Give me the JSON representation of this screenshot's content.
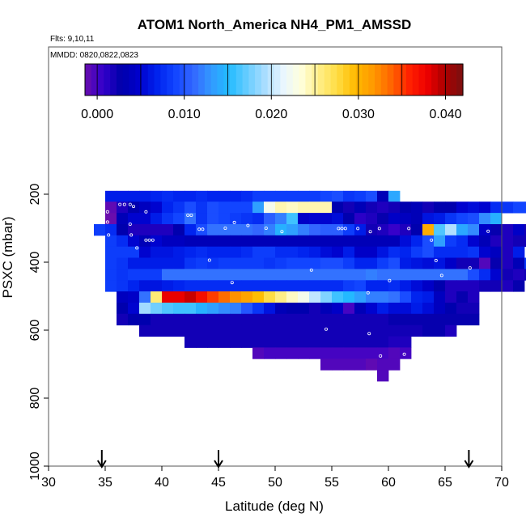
{
  "chart_data": {
    "type": "heatmap",
    "title": "ATOM1 North_America NH4_PM1_AMSSD",
    "subtitle_flights": "Flts: 9,10,11",
    "subtitle_dates": "MMDD: 0820,0822,0823",
    "xlabel": "Latitude (deg N)",
    "ylabel": "PSXC (mbar)",
    "xlim": [
      30,
      70
    ],
    "ylim": [
      1000,
      0
    ],
    "x_ticks": [
      30,
      35,
      40,
      45,
      50,
      55,
      60,
      65,
      70
    ],
    "x_tick_labels": [
      "30",
      "35",
      "40",
      "45",
      "50",
      "55",
      "60",
      "65",
      "70"
    ],
    "y_ticks": [
      200,
      400,
      600,
      800,
      1000
    ],
    "y_tick_labels": [
      "200",
      "400",
      "600",
      "800",
      "1000"
    ],
    "colorbar": {
      "range": [
        -0.0014,
        0.042
      ],
      "ticks": [
        0.0,
        0.01,
        0.02,
        0.03,
        0.04
      ],
      "tick_labels": [
        "0.000",
        "0.010",
        "0.020",
        "0.030",
        "0.040"
      ],
      "colors": [
        "#6a0dad",
        "#3300cc",
        "#0000aa",
        "#0000cc",
        "#0022ee",
        "#1144ff",
        "#3366ff",
        "#3399ff",
        "#22bbff",
        "#66ccff",
        "#aaddff",
        "#e8f6ff",
        "#ffffdd",
        "#ffee88",
        "#ffdd44",
        "#ffbb00",
        "#ff9900",
        "#ff6600",
        "#ff2200",
        "#ee0000",
        "#aa0000",
        "#7a1010"
      ]
    },
    "arrow_latitudes": [
      34.7,
      45.0,
      67.1
    ],
    "lat_bin_width": 1,
    "pressure_bin_height": 33,
    "rows": [
      {
        "p": 190,
        "lat_start": 35,
        "values": [
          0.0065,
          0.0065,
          0.0065,
          0.0065,
          0.007,
          0.0075,
          0.007,
          0.007,
          0.0075,
          0.007,
          0.007,
          0.007,
          0.0075,
          0.0085,
          0.0085,
          0.0085,
          0.0085,
          0.0085,
          0.0085,
          0.009,
          0.0095,
          0.008,
          0.0085,
          0.0095,
          0.0035,
          0.014
        ]
      },
      {
        "p": 222,
        "lat_start": 35,
        "values": [
          -0.001,
          0.0015,
          0.003,
          0.004,
          0.005,
          0.007,
          0.008,
          0.0095,
          0.008,
          0.0095,
          0.009,
          0.009,
          0.009,
          0.0135,
          0.0225,
          0.0245,
          0.024,
          0.0245,
          0.0245,
          0.0245,
          0.003,
          0.002,
          0.0035,
          0.002,
          0.0015,
          0.002,
          0.003,
          0.0035,
          0.002,
          0.003,
          0.003,
          0.005,
          0.0055,
          0.005,
          0.0075,
          0.008,
          0.009,
          0.009,
          0.009,
          0.0095,
          0.0125,
          0.0145,
          0.0015
        ]
      },
      {
        "p": 255,
        "lat_start": 35,
        "values": [
          -0.0015,
          0.0035,
          0.005,
          0.005,
          0.0065,
          0.008,
          0.009,
          0.0115,
          0.008,
          0.0095,
          0.009,
          0.0085,
          0.008,
          0.0075,
          0.0105,
          0.012,
          0.016,
          0.0045,
          0.005,
          0.005,
          0.0055,
          0.003,
          0.001,
          0.0015,
          0.0025,
          0.0045,
          0.004,
          0.0035,
          0.006,
          0.0065,
          0.008,
          0.009,
          0.0095,
          0.0125,
          0.0145
        ]
      },
      {
        "p": 288,
        "lat_start": 34,
        "values": [
          0.0085,
          0.0075,
          0.003,
          0.0015,
          0.0015,
          0.0015,
          0.0015,
          0.003,
          0.007,
          0.0095,
          0.0115,
          0.0115,
          0.0115,
          0.0115,
          0.011,
          0.012,
          0.0145,
          0.0135,
          0.012,
          0.011,
          0.0105,
          0.0105,
          0.0085,
          0.0065,
          0.002,
          0.0015,
          0.0005,
          0.0015,
          0.003,
          0.0305,
          0.0165,
          0.0195,
          0.014,
          0.0125,
          0.0045,
          0.0025,
          0.0015,
          0.0045,
          0.002,
          0.007,
          0.009,
          0.0105
        ]
      },
      {
        "p": 321,
        "lat_start": 35,
        "values": [
          0.0085,
          0.0075,
          0.005,
          0.0035,
          0.005,
          0.004,
          0.004,
          0.0035,
          0.0035,
          0.0035,
          0.0035,
          0.0035,
          0.0035,
          0.0035,
          0.0035,
          0.0035,
          0.0035,
          0.0035,
          0.0035,
          0.0035,
          0.0035,
          0.0035,
          0.0035,
          0.0035,
          0.0035,
          0.0035,
          0.0055,
          0.007,
          0.0095,
          0.0135,
          0.0085,
          0.0075,
          0.005,
          0.0035,
          0.0015,
          0.0015,
          0.002,
          0.002,
          0.0015
        ]
      },
      {
        "p": 354,
        "lat_start": 35,
        "values": [
          0.0085,
          0.0085,
          0.0085,
          0.005,
          0.006,
          0.006,
          0.0065,
          0.007,
          0.0075,
          0.007,
          0.007,
          0.007,
          0.0075,
          0.0085,
          0.0085,
          0.0075,
          0.0075,
          0.007,
          0.0065,
          0.0055,
          0.005,
          0.0065,
          0.0045,
          0.0045,
          0.006,
          0.0075,
          0.007,
          0.0085,
          0.0095,
          0.0075,
          0.0075,
          0.0075,
          0.008,
          0.005,
          0.004,
          0.0015,
          0.0065
        ]
      },
      {
        "p": 387,
        "lat_start": 35,
        "values": [
          0.0085,
          0.008,
          0.0065,
          0.0065,
          0.0065,
          0.0065,
          0.0065,
          0.008,
          0.0085,
          0.008,
          0.0085,
          0.0085,
          0.0085,
          0.0085,
          0.008,
          0.0085,
          0.009,
          0.009,
          0.009,
          0.0095,
          0.0095,
          0.0085,
          0.007,
          0.007,
          0.0085,
          0.0095,
          0.0065,
          0.006,
          0.0055,
          0.006,
          0.0045,
          0.002,
          0.002,
          -0.0005,
          0.0025,
          0.0015,
          0.0035,
          0.008
        ]
      },
      {
        "p": 420,
        "lat_start": 35,
        "values": [
          0.0085,
          0.008,
          0.0085,
          0.0085,
          0.0085,
          0.0115,
          0.0115,
          0.0115,
          0.0115,
          0.0115,
          0.0115,
          0.0115,
          0.0115,
          0.0115,
          0.0115,
          0.0115,
          0.0115,
          0.0115,
          0.0115,
          0.0115,
          0.0115,
          0.0115,
          0.0115,
          0.012,
          0.0115,
          0.0115,
          0.0115,
          0.0115,
          0.0115,
          0.0115,
          0.0115,
          0.0115,
          0.0095,
          0.0075,
          0.005,
          0.002,
          0.0015,
          0.002
        ]
      },
      {
        "p": 453,
        "lat_start": 35,
        "values": [
          0.0085,
          0.008,
          0.007,
          0.006,
          0.006,
          0.0065,
          0.007,
          0.0075,
          0.0075,
          0.0075,
          0.0075,
          0.0075,
          0.0075,
          0.0075,
          0.0075,
          0.0075,
          0.0075,
          0.0075,
          0.0075,
          0.0075,
          0.0075,
          0.0085,
          0.009,
          0.007,
          0.007,
          0.0075,
          0.0065,
          0.0055,
          0.0045,
          0.003,
          0.0015,
          0.0015,
          0.0015,
          0.002,
          0.002,
          0.0015,
          0.0025
        ]
      },
      {
        "p": 486,
        "lat_start": 36,
        "values": [
          0.004,
          0.0045,
          0.0115,
          0.026,
          0.038,
          0.038,
          0.039,
          0.037,
          0.035,
          0.0335,
          0.032,
          0.031,
          0.0295,
          0.0275,
          0.0255,
          0.024,
          0.0225,
          0.02,
          0.018,
          0.016,
          0.015,
          0.0135,
          0.012,
          0.012,
          0.0115,
          0.0095,
          0.007,
          0.0065,
          0.004,
          0.0015,
          0.0025,
          0.0015
        ]
      },
      {
        "p": 519,
        "lat_start": 36,
        "values": [
          0.003,
          0.005,
          0.019,
          0.0175,
          0.0165,
          0.016,
          0.016,
          0.0145,
          0.0135,
          0.0125,
          0.012,
          0.01,
          0.008,
          0.006,
          0.0035,
          0.003,
          0.003,
          0.002,
          0.0035,
          0.0045,
          0.0,
          0.0035,
          0.005,
          0.0065,
          0.0055,
          0.0055,
          0.0065,
          0.0055,
          0.004,
          0.003,
          0.002,
          0.002
        ]
      },
      {
        "p": 552,
        "lat_start": 36,
        "values": [
          0.002,
          0.003,
          0.003,
          0.002,
          0.002,
          0.002,
          0.002,
          0.002,
          0.002,
          0.002,
          0.002,
          0.002,
          0.002,
          0.002,
          0.002,
          0.002,
          0.002,
          0.002,
          0.002,
          0.002,
          0.002,
          0.002,
          0.002,
          0.002,
          0.0025,
          0.0025,
          0.0025,
          0.0025,
          0.0025,
          0.0025,
          0.0025,
          0.0025
        ]
      },
      {
        "p": 585,
        "lat_start": 38,
        "values": [
          0.002,
          0.002,
          0.002,
          0.002,
          0.002,
          0.002,
          0.002,
          0.002,
          0.002,
          0.002,
          0.002,
          0.002,
          0.002,
          0.002,
          0.002,
          0.002,
          0.002,
          0.002,
          0.002,
          0.002,
          0.002,
          0.002,
          0.002,
          0.002,
          0.002,
          0.0025,
          0.0025,
          0.0015
        ]
      },
      {
        "p": 618,
        "lat_start": 42,
        "values": [
          0.002,
          0.002,
          0.002,
          0.002,
          0.002,
          0.002,
          0.002,
          0.002,
          0.002,
          0.002,
          0.002,
          0.002,
          0.002,
          0.002,
          0.002,
          0.002,
          0.002,
          0.002,
          0.0015,
          0.0015
        ]
      },
      {
        "p": 651,
        "lat_start": 48,
        "values": [
          -0.0005,
          0.0,
          0.0,
          0.0,
          0.0,
          0.0,
          0.0,
          0.0,
          0.0,
          0.0,
          0.0,
          0.0,
          -0.0005,
          0.0
        ]
      },
      {
        "p": 684,
        "lat_start": 54,
        "values": [
          -0.0005,
          -0.0005,
          -0.0005,
          -0.0005,
          -0.001,
          -0.0005,
          -0.0005
        ]
      },
      {
        "p": 717,
        "lat_start": 59,
        "values": [
          -0.0005
        ]
      }
    ]
  }
}
